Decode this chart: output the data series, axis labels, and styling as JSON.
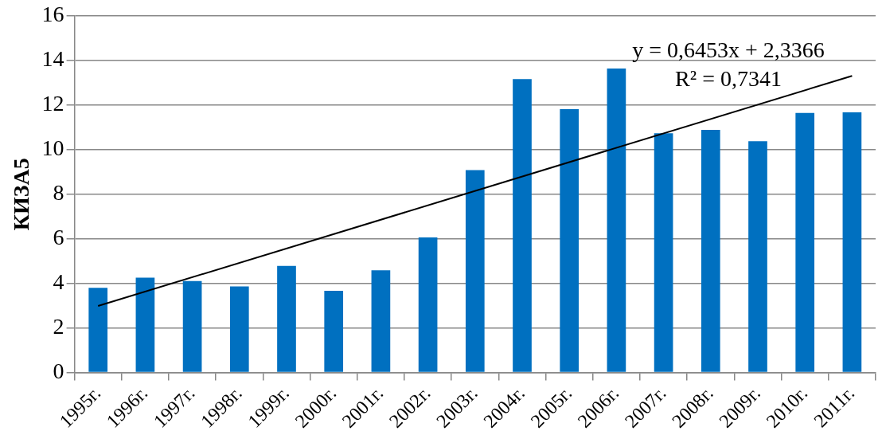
{
  "chart_data": {
    "type": "bar",
    "ylabel": "КИЗА5",
    "categories": [
      "1995г.",
      "1996г.",
      "1997г.",
      "1998г.",
      "1999г.",
      "2000г.",
      "2001г.",
      "2002г.",
      "2003г.",
      "2004г.",
      "2005г.",
      "2006г.",
      "2007г.",
      "2008г.",
      "2009г.",
      "2010г.",
      "2011г."
    ],
    "series": [
      {
        "color": "#0070c0",
        "values": [
          3.8,
          4.25,
          4.1,
          3.86,
          4.78,
          3.66,
          4.58,
          6.06,
          9.08,
          13.17,
          11.82,
          13.64,
          10.73,
          10.89,
          10.38,
          11.65,
          11.67
        ]
      },
      {
        "type": "line",
        "color": "#000000",
        "x": [
          "1995г.",
          "2011г."
        ],
        "values": [
          2.98,
          13.31
        ]
      }
    ],
    "ylim": [
      0,
      16
    ],
    "yticks": [
      0,
      2,
      4,
      6,
      8,
      10,
      12,
      14,
      16
    ],
    "grid": "y",
    "legend": false,
    "annotations": [
      "y = 0,6453x + 2,3366",
      "R² = 0,7341"
    ]
  }
}
